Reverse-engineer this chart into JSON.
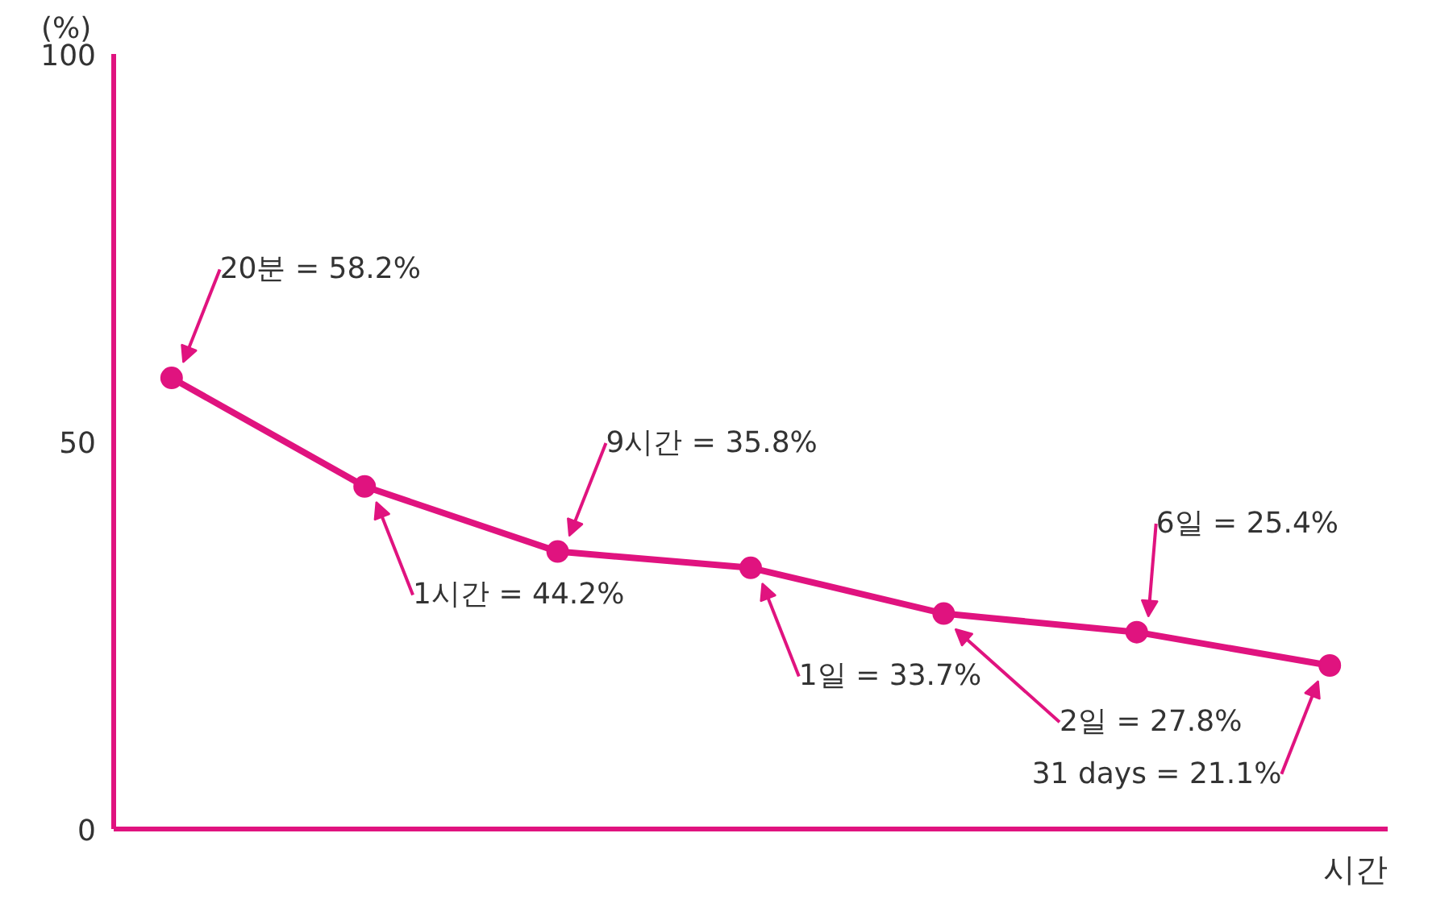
{
  "chart_data": {
    "type": "line",
    "ylabel": "(%)",
    "xlabel": "시간",
    "categories": [
      null,
      null,
      null,
      null,
      null,
      null,
      null
    ],
    "values": [
      58.2,
      44.2,
      35.8,
      33.7,
      27.8,
      25.4,
      21.1
    ],
    "color": "#e0137f",
    "ylim": [
      0,
      100
    ],
    "yticks": [
      0,
      50,
      100
    ],
    "tick_labels": "y",
    "marker": "circle",
    "line_style": "solid",
    "annotations": [
      "20분 = 58.2%",
      "1시간 = 44.2%",
      "9시간 = 35.8%",
      "1일 = 33.7%",
      "2일 = 27.8%",
      "6일 = 25.4%",
      "31 days = 21.1%"
    ]
  }
}
